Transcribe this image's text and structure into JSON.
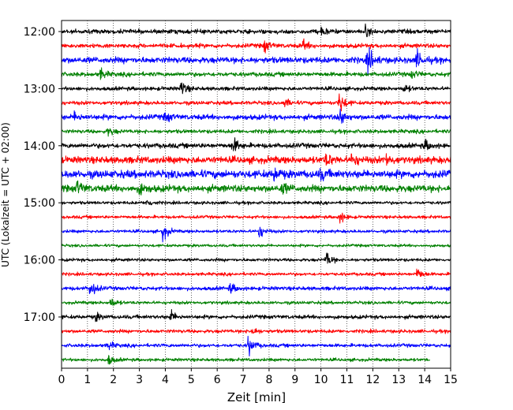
{
  "chart_data": {
    "type": "line",
    "chart_kind": "helicorder",
    "xlabel": "Zeit  [min]",
    "ylabel": "UTC (Lokalzeit = UTC + 02:00)",
    "xlim": [
      0,
      15
    ],
    "x_ticks": [
      "0",
      "1",
      "2",
      "3",
      "4",
      "5",
      "6",
      "7",
      "8",
      "9",
      "10",
      "11",
      "12",
      "13",
      "14",
      "15"
    ],
    "x_gridlines": "dotted vertical at every minute",
    "y_tick_labels": [
      "12:00",
      "13:00",
      "14:00",
      "15:00",
      "16:00",
      "17:00"
    ],
    "trace_interval_minutes": 15,
    "trace_color_cycle": [
      "#000000",
      "#ff0000",
      "#0000ff",
      "#008000"
    ],
    "traces": [
      {
        "start": "12:00",
        "color": "#000000",
        "noise": 2.5,
        "events": [
          {
            "t": 10.0,
            "amp": 5
          },
          {
            "t": 11.7,
            "amp": 6
          }
        ]
      },
      {
        "start": "12:15",
        "color": "#ff0000",
        "noise": 2.5,
        "events": [
          {
            "t": 7.8,
            "amp": 8
          },
          {
            "t": 9.3,
            "amp": 6
          }
        ]
      },
      {
        "start": "12:30",
        "color": "#0000ff",
        "noise": 3.5,
        "events": [
          {
            "t": 11.8,
            "amp": 16
          },
          {
            "t": 13.7,
            "amp": 10
          }
        ]
      },
      {
        "start": "12:45",
        "color": "#008000",
        "noise": 2.5,
        "events": [
          {
            "t": 1.5,
            "amp": 6
          },
          {
            "t": 13.5,
            "amp": 5
          }
        ]
      },
      {
        "start": "13:00",
        "color": "#000000",
        "noise": 2.2,
        "events": [
          {
            "t": 4.6,
            "amp": 9
          },
          {
            "t": 13.2,
            "amp": 5
          }
        ]
      },
      {
        "start": "13:15",
        "color": "#ff0000",
        "noise": 2.2,
        "events": [
          {
            "t": 10.7,
            "amp": 14
          },
          {
            "t": 8.6,
            "amp": 5
          }
        ]
      },
      {
        "start": "13:30",
        "color": "#0000ff",
        "noise": 3.0,
        "events": [
          {
            "t": 10.7,
            "amp": 12
          },
          {
            "t": 4.0,
            "amp": 6
          },
          {
            "t": 0.5,
            "amp": 5
          }
        ]
      },
      {
        "start": "13:45",
        "color": "#008000",
        "noise": 2.2,
        "events": [
          {
            "t": 1.8,
            "amp": 5
          }
        ]
      },
      {
        "start": "14:00",
        "color": "#000000",
        "noise": 2.8,
        "events": [
          {
            "t": 6.6,
            "amp": 10
          },
          {
            "t": 14.0,
            "amp": 6
          }
        ]
      },
      {
        "start": "14:15",
        "color": "#ff0000",
        "noise": 4.0,
        "events": [
          {
            "t": 11.2,
            "amp": 8
          },
          {
            "t": 12.5,
            "amp": 7
          },
          {
            "t": 10.2,
            "amp": 7
          }
        ]
      },
      {
        "start": "14:30",
        "color": "#0000ff",
        "noise": 4.5,
        "events": [
          {
            "t": 8.2,
            "amp": 7
          },
          {
            "t": 10.0,
            "amp": 6
          }
        ]
      },
      {
        "start": "14:45",
        "color": "#008000",
        "noise": 4.0,
        "events": [
          {
            "t": 0.6,
            "amp": 8
          },
          {
            "t": 3.0,
            "amp": 7
          },
          {
            "t": 8.5,
            "amp": 6
          }
        ]
      },
      {
        "start": "15:00",
        "color": "#000000",
        "noise": 1.8,
        "events": [
          {
            "t": 3.3,
            "amp": 5
          }
        ]
      },
      {
        "start": "15:15",
        "color": "#ff0000",
        "noise": 1.8,
        "events": [
          {
            "t": 10.7,
            "amp": 8
          }
        ]
      },
      {
        "start": "15:30",
        "color": "#0000ff",
        "noise": 1.8,
        "events": [
          {
            "t": 3.9,
            "amp": 11
          },
          {
            "t": 7.6,
            "amp": 9
          }
        ]
      },
      {
        "start": "15:45",
        "color": "#008000",
        "noise": 1.6,
        "events": []
      },
      {
        "start": "16:00",
        "color": "#000000",
        "noise": 1.8,
        "events": [
          {
            "t": 10.2,
            "amp": 10
          }
        ]
      },
      {
        "start": "16:15",
        "color": "#ff0000",
        "noise": 1.8,
        "events": [
          {
            "t": 13.7,
            "amp": 8
          }
        ]
      },
      {
        "start": "16:30",
        "color": "#0000ff",
        "noise": 2.2,
        "events": [
          {
            "t": 1.1,
            "amp": 11
          },
          {
            "t": 6.5,
            "amp": 6
          }
        ]
      },
      {
        "start": "16:45",
        "color": "#008000",
        "noise": 1.8,
        "events": [
          {
            "t": 1.9,
            "amp": 6
          }
        ]
      },
      {
        "start": "17:00",
        "color": "#000000",
        "noise": 2.2,
        "events": [
          {
            "t": 4.2,
            "amp": 7
          },
          {
            "t": 1.3,
            "amp": 5
          }
        ]
      },
      {
        "start": "17:15",
        "color": "#ff0000",
        "noise": 2.0,
        "events": [
          {
            "t": 7.3,
            "amp": 6
          }
        ]
      },
      {
        "start": "17:30",
        "color": "#0000ff",
        "noise": 2.0,
        "events": [
          {
            "t": 7.2,
            "amp": 12
          },
          {
            "t": 1.8,
            "amp": 5
          }
        ]
      },
      {
        "start": "17:45",
        "color": "#008000",
        "noise": 1.8,
        "end_minute": 14.2,
        "events": [
          {
            "t": 1.8,
            "amp": 6
          }
        ]
      }
    ]
  }
}
